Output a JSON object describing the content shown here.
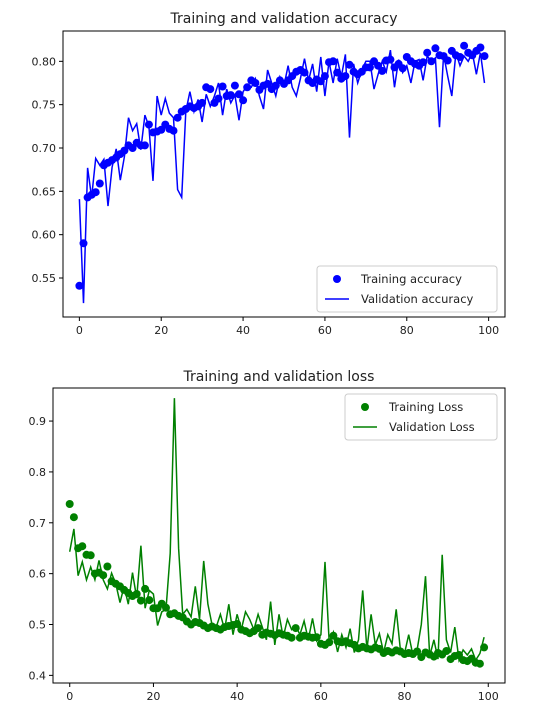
{
  "chart_data": [
    {
      "type": "line",
      "title": "Training and validation accuracy",
      "xlabel": "",
      "ylabel": "",
      "xlim": [
        -4,
        104
      ],
      "ylim": [
        0.505,
        0.835
      ],
      "xticks": [
        0,
        20,
        40,
        60,
        80,
        100
      ],
      "yticks": [
        0.55,
        0.6,
        0.65,
        0.7,
        0.75,
        0.8
      ],
      "ytick_labels": [
        "0.55",
        "0.60",
        "0.65",
        "0.70",
        "0.75",
        "0.80"
      ],
      "xtick_labels": [
        "0",
        "20",
        "40",
        "60",
        "80",
        "100"
      ],
      "grid": false,
      "legend_position": "lower-right",
      "colors": {
        "series": "#0000ff"
      },
      "series": [
        {
          "name": "Training accuracy",
          "style": "points",
          "x": [
            0,
            1,
            2,
            3,
            4,
            5,
            6,
            7,
            8,
            9,
            10,
            11,
            12,
            13,
            14,
            15,
            16,
            17,
            18,
            19,
            20,
            21,
            22,
            23,
            24,
            25,
            26,
            27,
            28,
            29,
            30,
            31,
            32,
            33,
            34,
            35,
            36,
            37,
            38,
            39,
            40,
            41,
            42,
            43,
            44,
            45,
            46,
            47,
            48,
            49,
            50,
            51,
            52,
            53,
            54,
            55,
            56,
            57,
            58,
            59,
            60,
            61,
            62,
            63,
            64,
            65,
            66,
            67,
            68,
            69,
            70,
            71,
            72,
            73,
            74,
            75,
            76,
            77,
            78,
            79,
            80,
            81,
            82,
            83,
            84,
            85,
            86,
            87,
            88,
            89,
            90,
            91,
            92,
            93,
            94,
            95,
            96,
            97,
            98,
            99
          ],
          "values": [
            0.541,
            0.59,
            0.643,
            0.646,
            0.649,
            0.659,
            0.68,
            0.683,
            0.686,
            0.689,
            0.693,
            0.697,
            0.703,
            0.7,
            0.706,
            0.703,
            0.703,
            0.727,
            0.718,
            0.719,
            0.721,
            0.727,
            0.722,
            0.72,
            0.735,
            0.742,
            0.745,
            0.748,
            0.746,
            0.748,
            0.752,
            0.77,
            0.768,
            0.752,
            0.757,
            0.771,
            0.76,
            0.761,
            0.772,
            0.762,
            0.755,
            0.77,
            0.778,
            0.775,
            0.767,
            0.772,
            0.774,
            0.768,
            0.772,
            0.778,
            0.774,
            0.778,
            0.783,
            0.788,
            0.79,
            0.787,
            0.778,
            0.775,
            0.779,
            0.777,
            0.783,
            0.799,
            0.8,
            0.787,
            0.78,
            0.783,
            0.796,
            0.788,
            0.785,
            0.788,
            0.793,
            0.793,
            0.8,
            0.795,
            0.789,
            0.801,
            0.802,
            0.793,
            0.797,
            0.792,
            0.805,
            0.8,
            0.797,
            0.795,
            0.799,
            0.81,
            0.8,
            0.815,
            0.807,
            0.806,
            0.801,
            0.812,
            0.807,
            0.805,
            0.818,
            0.81,
            0.807,
            0.812,
            0.816,
            0.806
          ]
        },
        {
          "name": "Validation accuracy",
          "style": "line",
          "x": [
            0,
            1,
            2,
            3,
            4,
            5,
            6,
            7,
            8,
            9,
            10,
            11,
            12,
            13,
            14,
            15,
            16,
            17,
            18,
            19,
            20,
            21,
            22,
            23,
            24,
            25,
            26,
            27,
            28,
            29,
            30,
            31,
            32,
            33,
            34,
            35,
            36,
            37,
            38,
            39,
            40,
            41,
            42,
            43,
            44,
            45,
            46,
            47,
            48,
            49,
            50,
            51,
            52,
            53,
            54,
            55,
            56,
            57,
            58,
            59,
            60,
            61,
            62,
            63,
            64,
            65,
            66,
            67,
            68,
            69,
            70,
            71,
            72,
            73,
            74,
            75,
            76,
            77,
            78,
            79,
            80,
            81,
            82,
            83,
            84,
            85,
            86,
            87,
            88,
            89,
            90,
            91,
            92,
            93,
            94,
            95,
            96,
            97,
            98,
            99
          ],
          "values": [
            0.641,
            0.521,
            0.677,
            0.643,
            0.688,
            0.68,
            0.687,
            0.633,
            0.678,
            0.699,
            0.663,
            0.69,
            0.735,
            0.72,
            0.728,
            0.698,
            0.738,
            0.725,
            0.662,
            0.76,
            0.738,
            0.757,
            0.74,
            0.735,
            0.652,
            0.643,
            0.742,
            0.765,
            0.742,
            0.756,
            0.73,
            0.762,
            0.748,
            0.76,
            0.775,
            0.738,
            0.768,
            0.752,
            0.761,
            0.732,
            0.765,
            0.772,
            0.77,
            0.78,
            0.76,
            0.745,
            0.79,
            0.775,
            0.76,
            0.782,
            0.772,
            0.795,
            0.77,
            0.76,
            0.78,
            0.803,
            0.778,
            0.797,
            0.765,
            0.805,
            0.76,
            0.8,
            0.775,
            0.803,
            0.782,
            0.808,
            0.712,
            0.797,
            0.775,
            0.79,
            0.8,
            0.8,
            0.768,
            0.785,
            0.8,
            0.788,
            0.813,
            0.77,
            0.802,
            0.787,
            0.795,
            0.775,
            0.8,
            0.802,
            0.778,
            0.806,
            0.8,
            0.804,
            0.724,
            0.808,
            0.783,
            0.76,
            0.81,
            0.795,
            0.806,
            0.8,
            0.81,
            0.785,
            0.81,
            0.775
          ]
        }
      ]
    },
    {
      "type": "scatter",
      "title": "Training and validation loss",
      "xlabel": "",
      "ylabel": "",
      "xlim": [
        -4,
        104
      ],
      "ylim": [
        0.385,
        0.965
      ],
      "xticks": [
        0,
        20,
        40,
        60,
        80,
        100
      ],
      "yticks": [
        0.4,
        0.5,
        0.6,
        0.7,
        0.8,
        0.9
      ],
      "ytick_labels": [
        "0.4",
        "0.5",
        "0.6",
        "0.7",
        "0.8",
        "0.9"
      ],
      "xtick_labels": [
        "0",
        "20",
        "40",
        "60",
        "80",
        "100"
      ],
      "grid": false,
      "legend_position": "upper-right",
      "colors": {
        "series": "#008000"
      },
      "series": [
        {
          "name": "Training Loss",
          "style": "points",
          "x": [
            0,
            1,
            2,
            3,
            4,
            5,
            6,
            7,
            8,
            9,
            10,
            11,
            12,
            13,
            14,
            15,
            16,
            17,
            18,
            19,
            20,
            21,
            22,
            23,
            24,
            25,
            26,
            27,
            28,
            29,
            30,
            31,
            32,
            33,
            34,
            35,
            36,
            37,
            38,
            39,
            40,
            41,
            42,
            43,
            44,
            45,
            46,
            47,
            48,
            49,
            50,
            51,
            52,
            53,
            54,
            55,
            56,
            57,
            58,
            59,
            60,
            61,
            62,
            63,
            64,
            65,
            66,
            67,
            68,
            69,
            70,
            71,
            72,
            73,
            74,
            75,
            76,
            77,
            78,
            79,
            80,
            81,
            82,
            83,
            84,
            85,
            86,
            87,
            88,
            89,
            90,
            91,
            92,
            93,
            94,
            95,
            96,
            97,
            98,
            99
          ],
          "values": [
            0.737,
            0.711,
            0.65,
            0.654,
            0.637,
            0.636,
            0.6,
            0.602,
            0.597,
            0.614,
            0.585,
            0.58,
            0.575,
            0.568,
            0.562,
            0.556,
            0.56,
            0.547,
            0.57,
            0.548,
            0.532,
            0.532,
            0.541,
            0.533,
            0.52,
            0.522,
            0.517,
            0.514,
            0.506,
            0.5,
            0.505,
            0.503,
            0.498,
            0.493,
            0.496,
            0.493,
            0.49,
            0.495,
            0.497,
            0.499,
            0.501,
            0.49,
            0.487,
            0.483,
            0.487,
            0.493,
            0.48,
            0.484,
            0.482,
            0.479,
            0.483,
            0.48,
            0.478,
            0.474,
            0.493,
            0.474,
            0.478,
            0.476,
            0.474,
            0.475,
            0.462,
            0.46,
            0.465,
            0.478,
            0.467,
            0.465,
            0.467,
            0.463,
            0.46,
            0.453,
            0.456,
            0.453,
            0.451,
            0.455,
            0.452,
            0.444,
            0.448,
            0.445,
            0.449,
            0.447,
            0.442,
            0.444,
            0.442,
            0.447,
            0.436,
            0.445,
            0.441,
            0.437,
            0.444,
            0.441,
            0.448,
            0.432,
            0.438,
            0.44,
            0.43,
            0.428,
            0.433,
            0.425,
            0.423,
            0.455
          ]
        },
        {
          "name": "Validation Loss",
          "style": "line",
          "x": [
            0,
            1,
            2,
            3,
            4,
            5,
            6,
            7,
            8,
            9,
            10,
            11,
            12,
            13,
            14,
            15,
            16,
            17,
            18,
            19,
            20,
            21,
            22,
            23,
            24,
            25,
            26,
            27,
            28,
            29,
            30,
            31,
            32,
            33,
            34,
            35,
            36,
            37,
            38,
            39,
            40,
            41,
            42,
            43,
            44,
            45,
            46,
            47,
            48,
            49,
            50,
            51,
            52,
            53,
            54,
            55,
            56,
            57,
            58,
            59,
            60,
            61,
            62,
            63,
            64,
            65,
            66,
            67,
            68,
            69,
            70,
            71,
            72,
            73,
            74,
            75,
            76,
            77,
            78,
            79,
            80,
            81,
            82,
            83,
            84,
            85,
            86,
            87,
            88,
            89,
            90,
            91,
            92,
            93,
            94,
            95,
            96,
            97,
            98,
            99
          ],
          "values": [
            0.643,
            0.688,
            0.596,
            0.623,
            0.588,
            0.613,
            0.588,
            0.626,
            0.588,
            0.57,
            0.601,
            0.58,
            0.543,
            0.575,
            0.54,
            0.602,
            0.552,
            0.655,
            0.532,
            0.567,
            0.56,
            0.498,
            0.525,
            0.53,
            0.64,
            0.945,
            0.65,
            0.52,
            0.53,
            0.515,
            0.575,
            0.51,
            0.625,
            0.54,
            0.5,
            0.495,
            0.52,
            0.49,
            0.54,
            0.48,
            0.52,
            0.49,
            0.525,
            0.51,
            0.49,
            0.52,
            0.495,
            0.47,
            0.545,
            0.46,
            0.52,
            0.475,
            0.51,
            0.49,
            0.498,
            0.48,
            0.507,
            0.47,
            0.512,
            0.468,
            0.48,
            0.623,
            0.465,
            0.485,
            0.446,
            0.48,
            0.455,
            0.492,
            0.445,
            0.47,
            0.567,
            0.451,
            0.52,
            0.46,
            0.482,
            0.445,
            0.48,
            0.462,
            0.53,
            0.45,
            0.444,
            0.48,
            0.44,
            0.45,
            0.5,
            0.595,
            0.438,
            0.47,
            0.432,
            0.637,
            0.47,
            0.445,
            0.495,
            0.43,
            0.45,
            0.44,
            0.452,
            0.43,
            0.443,
            0.475
          ]
        }
      ]
    }
  ]
}
